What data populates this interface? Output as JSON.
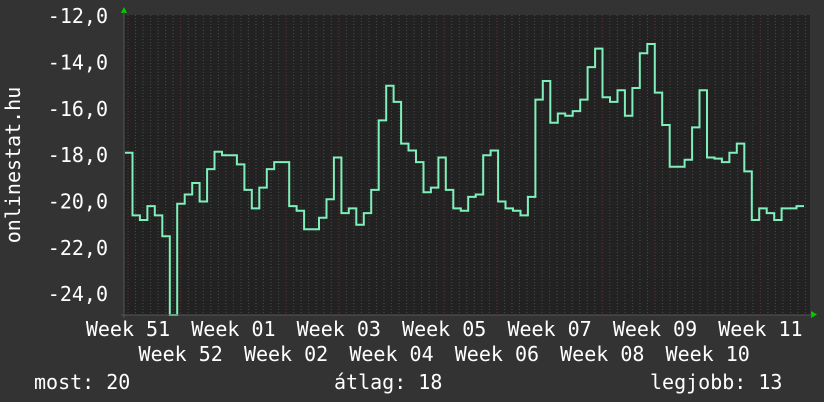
{
  "chart_data": {
    "type": "line",
    "style": "step",
    "ylabel": "onlinestat.hu",
    "ylim": [
      -24.9,
      -11.95
    ],
    "yticks": [
      "-12,0",
      "-14,0",
      "-16,0",
      "-18,0",
      "-20,0",
      "-22,0",
      "-24,0"
    ],
    "ytick_values": [
      -12,
      -14,
      -16,
      -18,
      -20,
      -22,
      -24
    ],
    "xticks": [
      "Week 51",
      "Week 52",
      "Week 01",
      "Week 02",
      "Week 03",
      "Week 04",
      "Week 05",
      "Week 06",
      "Week 07",
      "Week 08",
      "Week 09",
      "Week 10",
      "Week 11"
    ],
    "grid": true,
    "colors": {
      "background": "#333333",
      "plot": "#222222",
      "line": "#7ff0bb",
      "minor_grid": "#4a4a4a",
      "major_grid": "#6a3434",
      "text": "#ffffff",
      "arrow": "#00cc00"
    },
    "series": [
      {
        "values": [
          -17.9,
          -20.6,
          -20.8,
          -20.2,
          -20.6,
          -21.5,
          -24.9,
          -20.1,
          -19.7,
          -19.2,
          -20.0,
          -18.6,
          -17.85,
          -18.0,
          -18.0,
          -18.4,
          -19.5,
          -20.3,
          -19.4,
          -18.6,
          -18.3,
          -18.3,
          -20.2,
          -20.4,
          -21.2,
          -21.2,
          -20.7,
          -19.9,
          -18.1,
          -20.5,
          -20.3,
          -21.0,
          -20.5,
          -19.5,
          -16.5,
          -15.0,
          -15.7,
          -17.5,
          -17.8,
          -18.3,
          -19.6,
          -19.4,
          -18.1,
          -19.5,
          -20.3,
          -20.4,
          -19.8,
          -19.7,
          -18.0,
          -17.8,
          -20.0,
          -20.3,
          -20.4,
          -20.6,
          -19.8,
          -15.6,
          -14.8,
          -16.6,
          -16.2,
          -16.3,
          -16.1,
          -15.6,
          -14.2,
          -13.4,
          -15.5,
          -15.7,
          -15.2,
          -16.3,
          -15.1,
          -13.6,
          -13.2,
          -15.3,
          -16.7,
          -18.5,
          -18.5,
          -18.2,
          -16.8,
          -15.2,
          -18.1,
          -18.15,
          -18.3,
          -17.9,
          -17.5,
          -18.7,
          -20.8,
          -20.3,
          -20.5,
          -20.8,
          -20.3,
          -20.3,
          -20.2
        ]
      }
    ]
  },
  "footer": {
    "current": "most: 20",
    "average": "átlag: 18",
    "best": "legjobb: 13"
  }
}
